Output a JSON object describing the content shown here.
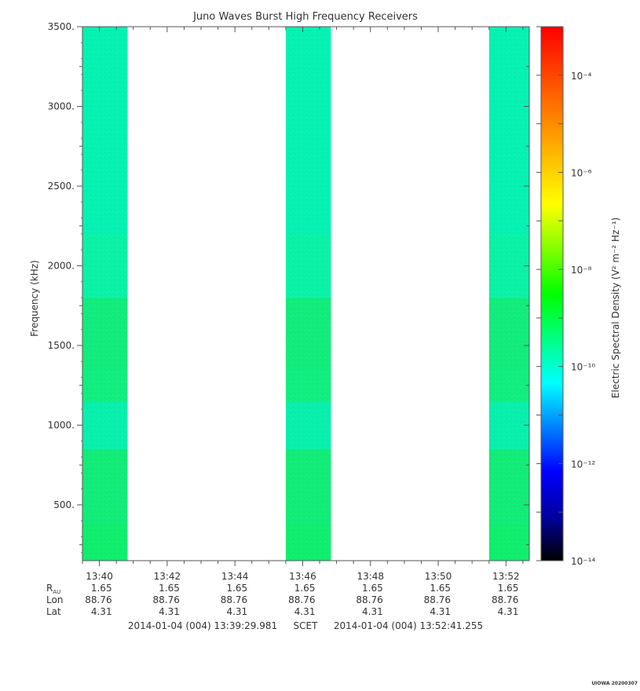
{
  "chart_data": {
    "type": "heatmap",
    "title": "Juno Waves Burst High Frequency Receivers",
    "xlabel": "",
    "ylabel": "Frequency (kHz)",
    "x_range": [
      "13:39:29.981",
      "13:52:41.255"
    ],
    "x_ticks": [
      "13:40",
      "13:42",
      "13:44",
      "13:46",
      "13:48",
      "13:50",
      "13:52"
    ],
    "y_range": [
      150,
      3500
    ],
    "y_ticks": [
      {
        "value": 500,
        "label": "500."
      },
      {
        "value": 1000,
        "label": "1000."
      },
      {
        "value": 1500,
        "label": "1500."
      },
      {
        "value": 2000,
        "label": "2000."
      },
      {
        "value": 2500,
        "label": "2500."
      },
      {
        "value": 3000,
        "label": "3000."
      },
      {
        "value": 3500,
        "label": "3500."
      }
    ],
    "data_intervals": [
      {
        "start": "13:39:30",
        "end": "13:40:50"
      },
      {
        "start": "13:45:30",
        "end": "13:46:50"
      },
      {
        "start": "13:51:30",
        "end": "13:52:41"
      }
    ],
    "frequency_bands": [
      {
        "from": 150,
        "to": 380,
        "color": "#10ee6e"
      },
      {
        "from": 380,
        "to": 850,
        "color": "#12ec78"
      },
      {
        "from": 850,
        "to": 1150,
        "color": "#08f0ac"
      },
      {
        "from": 1150,
        "to": 1350,
        "color": "#11ee80"
      },
      {
        "from": 1350,
        "to": 1800,
        "color": "#12ec7c"
      },
      {
        "from": 1800,
        "to": 2200,
        "color": "#0af2a6"
      },
      {
        "from": 2200,
        "to": 3500,
        "color": "#05f2b2"
      }
    ],
    "colorbar": {
      "label": "Electric Spectral Density (V² m⁻² Hz⁻¹)",
      "scale": "log",
      "range": [
        1e-14,
        0.001
      ],
      "ticks": [
        {
          "exp": -14,
          "label": "10⁻¹⁴"
        },
        {
          "exp": -12,
          "label": "10⁻¹²"
        },
        {
          "exp": -10,
          "label": "10⁻¹⁰"
        },
        {
          "exp": -8,
          "label": "10⁻⁸"
        },
        {
          "exp": -6,
          "label": "10⁻⁶"
        },
        {
          "exp": -4,
          "label": "10⁻⁴"
        }
      ],
      "colors": [
        "#000000",
        "#0000a0",
        "#0000ff",
        "#0080ff",
        "#00ffff",
        "#00ff80",
        "#00ff00",
        "#80ff00",
        "#ffff00",
        "#ffc000",
        "#ff8000",
        "#ff4000",
        "#ff0000"
      ]
    },
    "ephemeris": [
      {
        "label": "R",
        "sub": "AU",
        "values": [
          "1.65",
          "1.65",
          "1.65",
          "1.65",
          "1.65",
          "1.65",
          "1.65"
        ]
      },
      {
        "label": "Lon",
        "values": [
          "88.76",
          "88.76",
          "88.76",
          "88.76",
          "88.76",
          "88.76",
          "88.76"
        ]
      },
      {
        "label": "Lat",
        "values": [
          "4.31",
          "4.31",
          "4.31",
          "4.31",
          "4.31",
          "4.31",
          "4.31"
        ]
      }
    ],
    "time_span": {
      "start": "2014-01-04 (004) 13:39:29.981",
      "label": "SCET",
      "end": "2014-01-04 (004) 13:52:41.255"
    },
    "footer": "UIOWA 20200307"
  }
}
